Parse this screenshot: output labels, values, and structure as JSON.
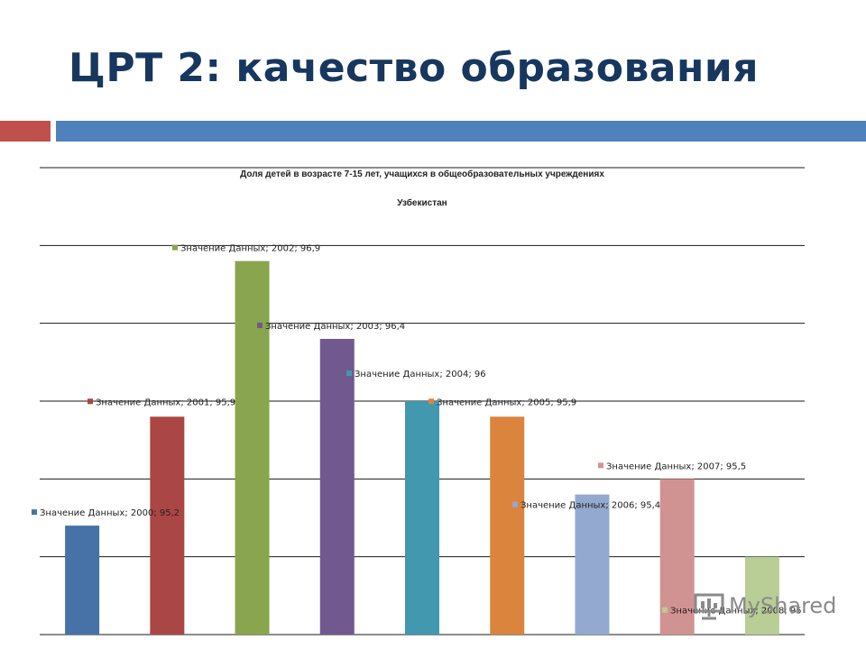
{
  "slide": {
    "title": "ЦРТ 2: качество образования",
    "accent_colors": {
      "left": "#c0504d",
      "bar": "#4f81bd"
    }
  },
  "watermark": {
    "text": "MyShared",
    "icon": "presentation-icon"
  },
  "chart_data": {
    "type": "bar",
    "title": "Доля детей в возрасте  7-15 лет, учащихся  в общеобразовательных  учреждениях",
    "subtitle": "Узбекистан",
    "xlabel": "",
    "ylabel": "",
    "categories": [
      "2000",
      "2001",
      "2002",
      "2003",
      "2004",
      "2005",
      "2006",
      "2007",
      "2008"
    ],
    "series": [
      {
        "name": "Значение Данных",
        "values": [
          95.2,
          95.9,
          96.9,
          96.4,
          96,
          95.9,
          95.4,
          95.5,
          95
        ]
      }
    ],
    "colors": [
      "#4672a8",
      "#aa4643",
      "#89a54e",
      "#71588f",
      "#4198af",
      "#db843d",
      "#93a9cf",
      "#d19392",
      "#b9cd96"
    ],
    "data_labels": [
      "Значение Данных; 2000; 95,2",
      "Значение Данных; 2001; 95,9",
      "Значение Данных; 2002; 96,9",
      "Значение Данных; 2003; 96,4",
      "Значение Данных; 2004; 96",
      "Значение Данных; 2005; 95,9",
      "Значение Данных; 2006; 95,4",
      "Значение Данных; 2007; 95,5",
      "Значение Данных; 2008; 95"
    ],
    "ylim": [
      94.5,
      97.5
    ],
    "grid": true,
    "legend": "none"
  }
}
